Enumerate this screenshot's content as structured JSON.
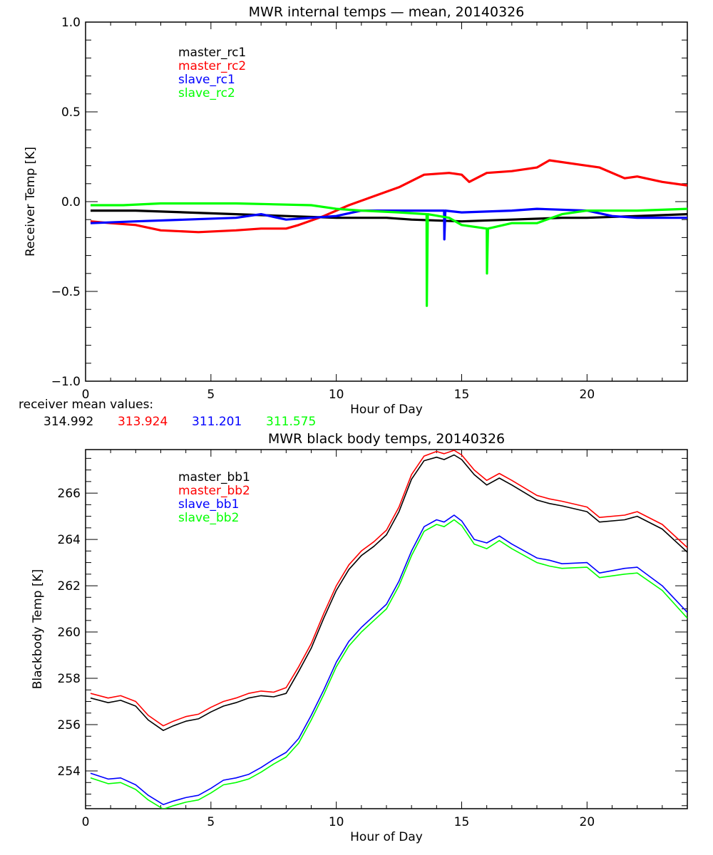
{
  "chart_data": [
    {
      "type": "line",
      "title": "MWR internal temps — mean, 20140326",
      "xlabel": "Hour of Day",
      "ylabel": "Receiver Temp [K]",
      "xlim": [
        0,
        24
      ],
      "ylim": [
        -1.0,
        1.0
      ],
      "x_ticks": [
        0,
        5,
        10,
        15,
        20
      ],
      "x_tick_labels": [
        "0",
        "5",
        "10",
        "15",
        "20"
      ],
      "y_ticks": [
        -1.0,
        -0.5,
        0.0,
        0.5,
        1.0
      ],
      "y_tick_labels": [
        "−1.0",
        "−0.5",
        "0.0",
        "0.5",
        "1.0"
      ],
      "grid": false,
      "legend_position": "top-left",
      "series": [
        {
          "name": "master_rc1",
          "color": "#000000",
          "x": [
            0.2,
            2,
            4,
            6,
            8,
            10,
            12,
            13,
            15,
            17,
            19,
            20,
            22,
            24
          ],
          "y": [
            -0.05,
            -0.05,
            -0.06,
            -0.07,
            -0.08,
            -0.09,
            -0.09,
            -0.1,
            -0.11,
            -0.1,
            -0.09,
            -0.09,
            -0.08,
            -0.07
          ]
        },
        {
          "name": "master_rc2",
          "color": "#ff0000",
          "x": [
            0.2,
            1,
            2,
            3,
            4.5,
            6,
            7,
            8,
            8.5,
            9.5,
            10.5,
            11.5,
            12.5,
            13.5,
            14.5,
            15,
            15.3,
            16,
            17,
            18,
            18.5,
            19.5,
            20.5,
            21.5,
            22,
            23,
            24
          ],
          "y": [
            -0.11,
            -0.12,
            -0.13,
            -0.16,
            -0.17,
            -0.16,
            -0.15,
            -0.15,
            -0.13,
            -0.08,
            -0.02,
            0.03,
            0.08,
            0.15,
            0.16,
            0.15,
            0.11,
            0.16,
            0.17,
            0.19,
            0.23,
            0.21,
            0.19,
            0.13,
            0.14,
            0.11,
            0.09
          ]
        },
        {
          "name": "slave_rc1",
          "color": "#0000ff",
          "x": [
            0.2,
            2,
            4,
            6,
            7,
            8,
            10,
            11,
            12,
            14,
            14.3,
            14.31,
            14.35,
            15,
            17,
            18,
            20,
            21,
            22,
            24
          ],
          "y": [
            -0.12,
            -0.11,
            -0.1,
            -0.09,
            -0.07,
            -0.1,
            -0.08,
            -0.05,
            -0.05,
            -0.05,
            -0.05,
            -0.21,
            -0.05,
            -0.06,
            -0.05,
            -0.04,
            -0.05,
            -0.08,
            -0.09,
            -0.09
          ]
        },
        {
          "name": "slave_rc2",
          "color": "#00ff00",
          "x": [
            0.2,
            1.5,
            3,
            6,
            9,
            10,
            11,
            12.5,
            13.6,
            13.61,
            13.65,
            14.5,
            15,
            16,
            16.01,
            16.05,
            17,
            18,
            19,
            20,
            22,
            24
          ],
          "y": [
            -0.02,
            -0.02,
            -0.01,
            -0.01,
            -0.02,
            -0.04,
            -0.05,
            -0.06,
            -0.07,
            -0.58,
            -0.07,
            -0.09,
            -0.13,
            -0.15,
            -0.4,
            -0.15,
            -0.12,
            -0.12,
            -0.07,
            -0.05,
            -0.05,
            -0.04
          ]
        }
      ],
      "annotation": {
        "label": "receiver mean values:",
        "values": [
          {
            "value": "314.992",
            "color": "#000000"
          },
          {
            "value": "313.924",
            "color": "#ff0000"
          },
          {
            "value": "311.201",
            "color": "#0000ff"
          },
          {
            "value": "311.575",
            "color": "#00ff00"
          }
        ]
      }
    },
    {
      "type": "line",
      "title": "MWR black body temps, 20140326",
      "xlabel": "Hour of Day",
      "ylabel": "Blackbody Temp [K]",
      "xlim": [
        0,
        24
      ],
      "ylim": [
        252.37,
        267.88
      ],
      "x_ticks": [
        0,
        5,
        10,
        15,
        20
      ],
      "x_tick_labels": [
        "0",
        "5",
        "10",
        "15",
        "20"
      ],
      "y_ticks": [
        254,
        256,
        258,
        260,
        262,
        264,
        266
      ],
      "y_tick_labels": [
        "254",
        "256",
        "258",
        "260",
        "262",
        "264",
        "266"
      ],
      "grid": false,
      "legend_position": "top-left",
      "series": [
        {
          "name": "master_bb1",
          "color": "#000000",
          "x": [
            0.2,
            0.9,
            1.4,
            2,
            2.5,
            3.1,
            3.5,
            4,
            4.5,
            5,
            5.5,
            6,
            6.5,
            7,
            7.5,
            8,
            8.5,
            9,
            9.5,
            10,
            10.5,
            11,
            11.5,
            12,
            12.5,
            13,
            13.5,
            14,
            14.3,
            14.7,
            15,
            15.5,
            16,
            16.5,
            17,
            18,
            18.5,
            19,
            20,
            20.5,
            21.5,
            22,
            23,
            24
          ],
          "y": [
            257.15,
            256.95,
            257.05,
            256.8,
            256.2,
            255.75,
            255.95,
            256.15,
            256.25,
            256.55,
            256.8,
            256.95,
            257.15,
            257.25,
            257.2,
            257.35,
            258.3,
            259.3,
            260.6,
            261.8,
            262.7,
            263.3,
            263.7,
            264.2,
            265.2,
            266.6,
            267.4,
            267.55,
            267.45,
            267.65,
            267.45,
            266.8,
            266.35,
            266.65,
            266.35,
            265.7,
            265.55,
            265.45,
            265.2,
            264.75,
            264.85,
            265.0,
            264.45,
            263.45
          ]
        },
        {
          "name": "master_bb2",
          "color": "#ff0000",
          "x": [
            0.2,
            0.9,
            1.4,
            2,
            2.5,
            3.1,
            3.5,
            4,
            4.5,
            5,
            5.5,
            6,
            6.5,
            7,
            7.5,
            8,
            8.5,
            9,
            9.5,
            10,
            10.5,
            11,
            11.5,
            12,
            12.5,
            13,
            13.5,
            14,
            14.3,
            14.7,
            15,
            15.5,
            16,
            16.5,
            17,
            18,
            18.5,
            19,
            20,
            20.5,
            21.5,
            22,
            23,
            24
          ],
          "y": [
            257.35,
            257.15,
            257.25,
            257.0,
            256.4,
            255.95,
            256.15,
            256.35,
            256.45,
            256.75,
            257.0,
            257.15,
            257.35,
            257.45,
            257.4,
            257.6,
            258.5,
            259.5,
            260.8,
            262.0,
            262.9,
            263.5,
            263.9,
            264.4,
            265.4,
            266.8,
            267.6,
            267.8,
            267.7,
            267.85,
            267.65,
            267.0,
            266.55,
            266.85,
            266.55,
            265.9,
            265.75,
            265.65,
            265.4,
            264.95,
            265.05,
            265.2,
            264.65,
            263.65
          ]
        },
        {
          "name": "slave_bb1",
          "color": "#0000ff",
          "x": [
            0.2,
            0.9,
            1.4,
            2,
            2.5,
            3.1,
            3.5,
            4,
            4.5,
            5,
            5.5,
            6,
            6.5,
            7,
            7.5,
            8,
            8.5,
            9,
            9.5,
            10,
            10.5,
            11,
            11.5,
            12,
            12.5,
            13,
            13.5,
            14,
            14.3,
            14.7,
            15,
            15.5,
            16,
            16.5,
            17,
            18,
            18.5,
            19,
            20,
            20.5,
            21.5,
            22,
            23,
            24
          ],
          "y": [
            253.9,
            253.65,
            253.7,
            253.4,
            252.95,
            252.55,
            252.7,
            252.85,
            252.95,
            253.25,
            253.6,
            253.7,
            253.85,
            254.15,
            254.5,
            254.8,
            255.4,
            256.4,
            257.5,
            258.7,
            259.6,
            260.2,
            260.7,
            261.2,
            262.2,
            263.5,
            264.55,
            264.85,
            264.75,
            265.05,
            264.8,
            264.0,
            263.85,
            264.15,
            263.8,
            263.2,
            263.1,
            262.95,
            263.0,
            262.55,
            262.75,
            262.8,
            262.0,
            260.85
          ]
        },
        {
          "name": "slave_bb2",
          "color": "#00ff00",
          "x": [
            0.2,
            0.9,
            1.4,
            2,
            2.5,
            3.1,
            3.5,
            4,
            4.5,
            5,
            5.5,
            6,
            6.5,
            7,
            7.5,
            8,
            8.5,
            9,
            9.5,
            10,
            10.5,
            11,
            11.5,
            12,
            12.5,
            13,
            13.5,
            14,
            14.3,
            14.7,
            15,
            15.5,
            16,
            16.5,
            17,
            18,
            18.5,
            19,
            20,
            20.5,
            21.5,
            22,
            23,
            24
          ],
          "y": [
            253.7,
            253.45,
            253.5,
            253.2,
            252.75,
            252.35,
            252.5,
            252.65,
            252.75,
            253.05,
            253.4,
            253.5,
            253.65,
            253.95,
            254.3,
            254.6,
            255.2,
            256.2,
            257.3,
            258.5,
            259.4,
            260.0,
            260.5,
            261.0,
            262.0,
            263.3,
            264.35,
            264.65,
            264.55,
            264.85,
            264.6,
            263.8,
            263.6,
            263.95,
            263.6,
            263.0,
            262.85,
            262.75,
            262.8,
            262.35,
            262.5,
            262.55,
            261.8,
            260.6
          ]
        }
      ]
    }
  ]
}
